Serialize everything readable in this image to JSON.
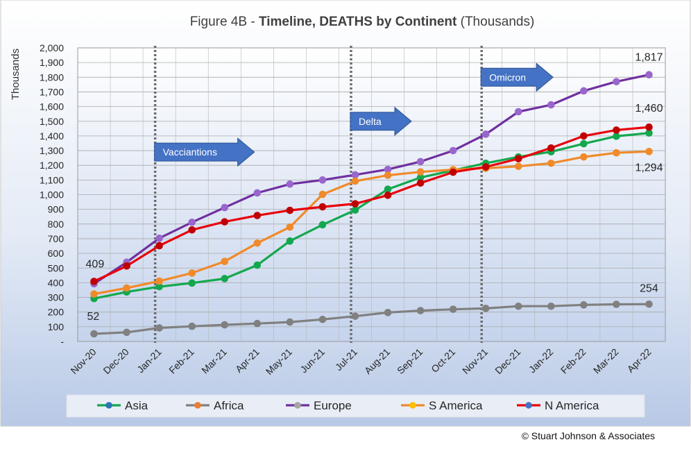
{
  "chart_data": {
    "type": "line",
    "title_prefix": "Figure 4B - ",
    "title_bold": "Timeline, DEATHS by Continent",
    "title_suffix": " (Thousands)",
    "ylabel": "Thousands",
    "ylim": [
      0,
      2000
    ],
    "ytick_step": 100,
    "yticks": [
      "-",
      "100",
      "200",
      "300",
      "400",
      "500",
      "600",
      "700",
      "800",
      "900",
      "1,000",
      "1,100",
      "1,200",
      "1,300",
      "1,400",
      "1,500",
      "1,600",
      "1,700",
      "1,800",
      "1,900",
      "2,000"
    ],
    "grid": true,
    "legend_position": "bottom",
    "categories": [
      "Nov-20",
      "Dec-20",
      "Jan-21",
      "Feb-21",
      "Mar-21",
      "Apr-21",
      "May-21",
      "Jun-21",
      "Jul-21",
      "Aug-21",
      "Sep-21",
      "Oct-21",
      "Nov-21",
      "Dec-21",
      "Jan-22",
      "Feb-22",
      "Mar-22",
      "Apr-22"
    ],
    "series": [
      {
        "name": "Asia",
        "color": "#13a84e",
        "marker": "#13a84e",
        "legend_marker": "#2e75b6",
        "values": [
          292,
          337,
          373,
          398,
          428,
          520,
          684,
          795,
          895,
          1037,
          1117,
          1165,
          1214,
          1257,
          1292,
          1347,
          1398,
          1420
        ]
      },
      {
        "name": "Africa",
        "color": "#808080",
        "marker": "#808080",
        "legend_marker": "#ed7d31",
        "values": [
          52,
          62,
          92,
          103,
          113,
          122,
          132,
          150,
          172,
          197,
          210,
          219,
          225,
          240,
          240,
          249,
          253,
          254
        ]
      },
      {
        "name": "Europe",
        "color": "#7030a0",
        "marker": "#9966cc",
        "legend_marker": "#a5a5a5",
        "values": [
          393,
          540,
          703,
          812,
          912,
          1012,
          1072,
          1100,
          1135,
          1172,
          1225,
          1300,
          1412,
          1565,
          1612,
          1707,
          1770,
          1817
        ]
      },
      {
        "name": "S America",
        "color": "#f08a2b",
        "marker": "#f08a2b",
        "legend_marker": "#ffc000",
        "values": [
          323,
          364,
          411,
          466,
          545,
          670,
          779,
          1002,
          1092,
          1132,
          1155,
          1170,
          1180,
          1193,
          1214,
          1257,
          1285,
          1294
        ]
      },
      {
        "name": "N America",
        "color": "#e8000b",
        "marker": "#c00000",
        "legend_marker": "#4472c4",
        "values": [
          409,
          514,
          652,
          760,
          815,
          858,
          893,
          917,
          938,
          996,
          1079,
          1153,
          1189,
          1245,
          1318,
          1400,
          1440,
          1460
        ]
      }
    ],
    "vlines_at": [
      "Jan-21",
      "Jul-21",
      "Nov-21"
    ],
    "annotations": [
      {
        "text": "Vacciantions",
        "category": "Jan-21",
        "value": 1290
      },
      {
        "text": "Delta",
        "category": "Jul-21",
        "value": 1500
      },
      {
        "text": "Omicron",
        "category": "Nov-21",
        "value": 1800
      }
    ],
    "data_labels": [
      {
        "text": "409",
        "series": "N America",
        "category": "Nov-20"
      },
      {
        "text": "52",
        "series": "Africa",
        "category": "Nov-20"
      },
      {
        "text": "1,817",
        "series": "Europe",
        "category": "Apr-22"
      },
      {
        "text": "1,460",
        "series": "N America",
        "category": "Apr-22"
      },
      {
        "text": "1,294",
        "series": "S America",
        "category": "Apr-22"
      },
      {
        "text": "254",
        "series": "Africa",
        "category": "Apr-22"
      }
    ]
  },
  "footer": {
    "copyright": "© Stuart Johnson & Associates"
  }
}
